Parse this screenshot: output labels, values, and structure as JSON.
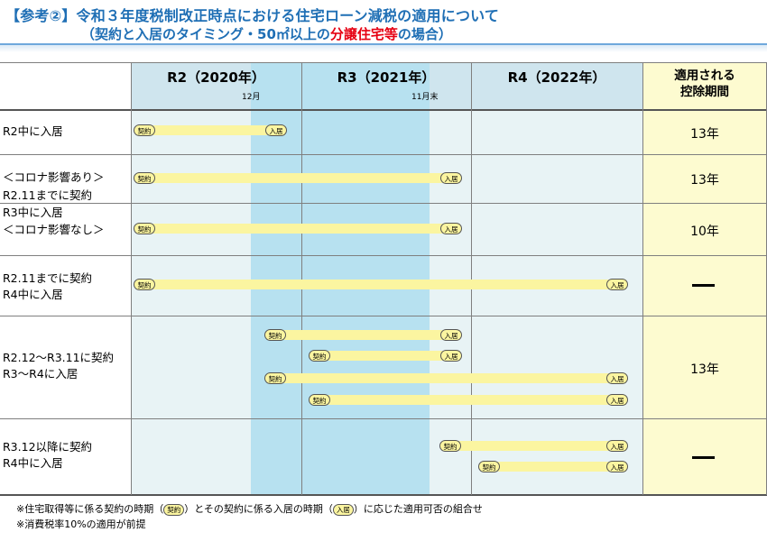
{
  "title": {
    "line1": "【参考②】令和３年度税制改正時点における住宅ローン減税の適用について",
    "line2_prefix": "（契約と入居のタイミング・50㎡以上の",
    "line2_highlight": "分譲住宅等",
    "line2_suffix": "の場合）"
  },
  "header": {
    "r2": "R2（2020年）",
    "r2_sub": "12月",
    "r3": "R3（2021年）",
    "r3_sub": "11月末",
    "r4": "R4（2022年）",
    "period_line1": "適用される",
    "period_line2": "控除期間"
  },
  "labels": {
    "contract": "契約",
    "moveIn": "入居"
  },
  "rows": {
    "r1": {
      "label1": "R2中に入居",
      "period": "13年"
    },
    "r2": {
      "label1": "＜コロナ影響あり＞",
      "period": "13年"
    },
    "r3": {
      "label1": "R2.11までに契約",
      "label2": "R3中に入居"
    },
    "r4": {
      "label1": "＜コロナ影響なし＞",
      "period": "10年"
    },
    "r5": {
      "label1": "R2.11までに契約",
      "label2": "R4中に入居",
      "period": "―"
    },
    "r6": {
      "label1": "R2.12～R3.11に契約",
      "label2": "R3～R4に入居",
      "period": "13年"
    },
    "r7": {
      "label1": "R3.12以降に契約",
      "label2": "R4中に入居",
      "period": "―"
    }
  },
  "notes": {
    "n1_prefix": "※住宅取得等に係る契約の時期（",
    "n1_mid": "）とその契約に係る入居の時期（",
    "n1_suffix": "）に応じた適用可否の組合せ",
    "n2": "※消費税率10%の適用が前提"
  },
  "colors": {
    "title": "#1f6fb5",
    "highlight": "#e60012",
    "header": "#cfe5ee",
    "body": "#e8f3f5",
    "windowHighlight": "#b7e1f0",
    "periodColumn": "#fdfbd0",
    "bar": "#fbf5a0"
  }
}
